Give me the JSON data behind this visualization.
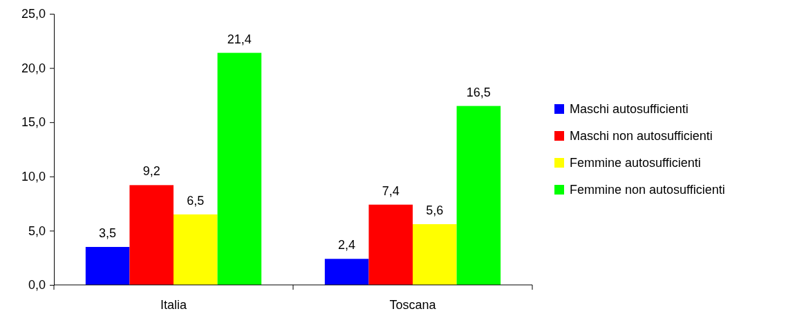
{
  "chart_data": {
    "type": "bar",
    "categories": [
      "Italia",
      "Toscana"
    ],
    "series": [
      {
        "name": "Maschi autosufficienti",
        "color": "#0000ff",
        "values": [
          3.5,
          2.4
        ],
        "value_labels": [
          "3,5",
          "2,4"
        ]
      },
      {
        "name": "Maschi non autosufficienti",
        "color": "#ff0000",
        "values": [
          9.2,
          7.4
        ],
        "value_labels": [
          "9,2",
          "7,4"
        ]
      },
      {
        "name": "Femmine autosufficienti",
        "color": "#ffff00",
        "values": [
          6.5,
          5.6
        ],
        "value_labels": [
          "6,5",
          "5,6"
        ]
      },
      {
        "name": "Femmine non autosufficienti",
        "color": "#00ff00",
        "values": [
          21.4,
          16.5
        ],
        "value_labels": [
          "21,4",
          "16,5"
        ]
      }
    ],
    "ylim": [
      0,
      25
    ],
    "yticks": [
      {
        "value": 0,
        "label": "0,0"
      },
      {
        "value": 5,
        "label": "5,0"
      },
      {
        "value": 10,
        "label": "10,0"
      },
      {
        "value": 15,
        "label": "15,0"
      },
      {
        "value": 20,
        "label": "20,0"
      },
      {
        "value": 25,
        "label": "25,0"
      }
    ],
    "grid": false,
    "legend": "right"
  }
}
